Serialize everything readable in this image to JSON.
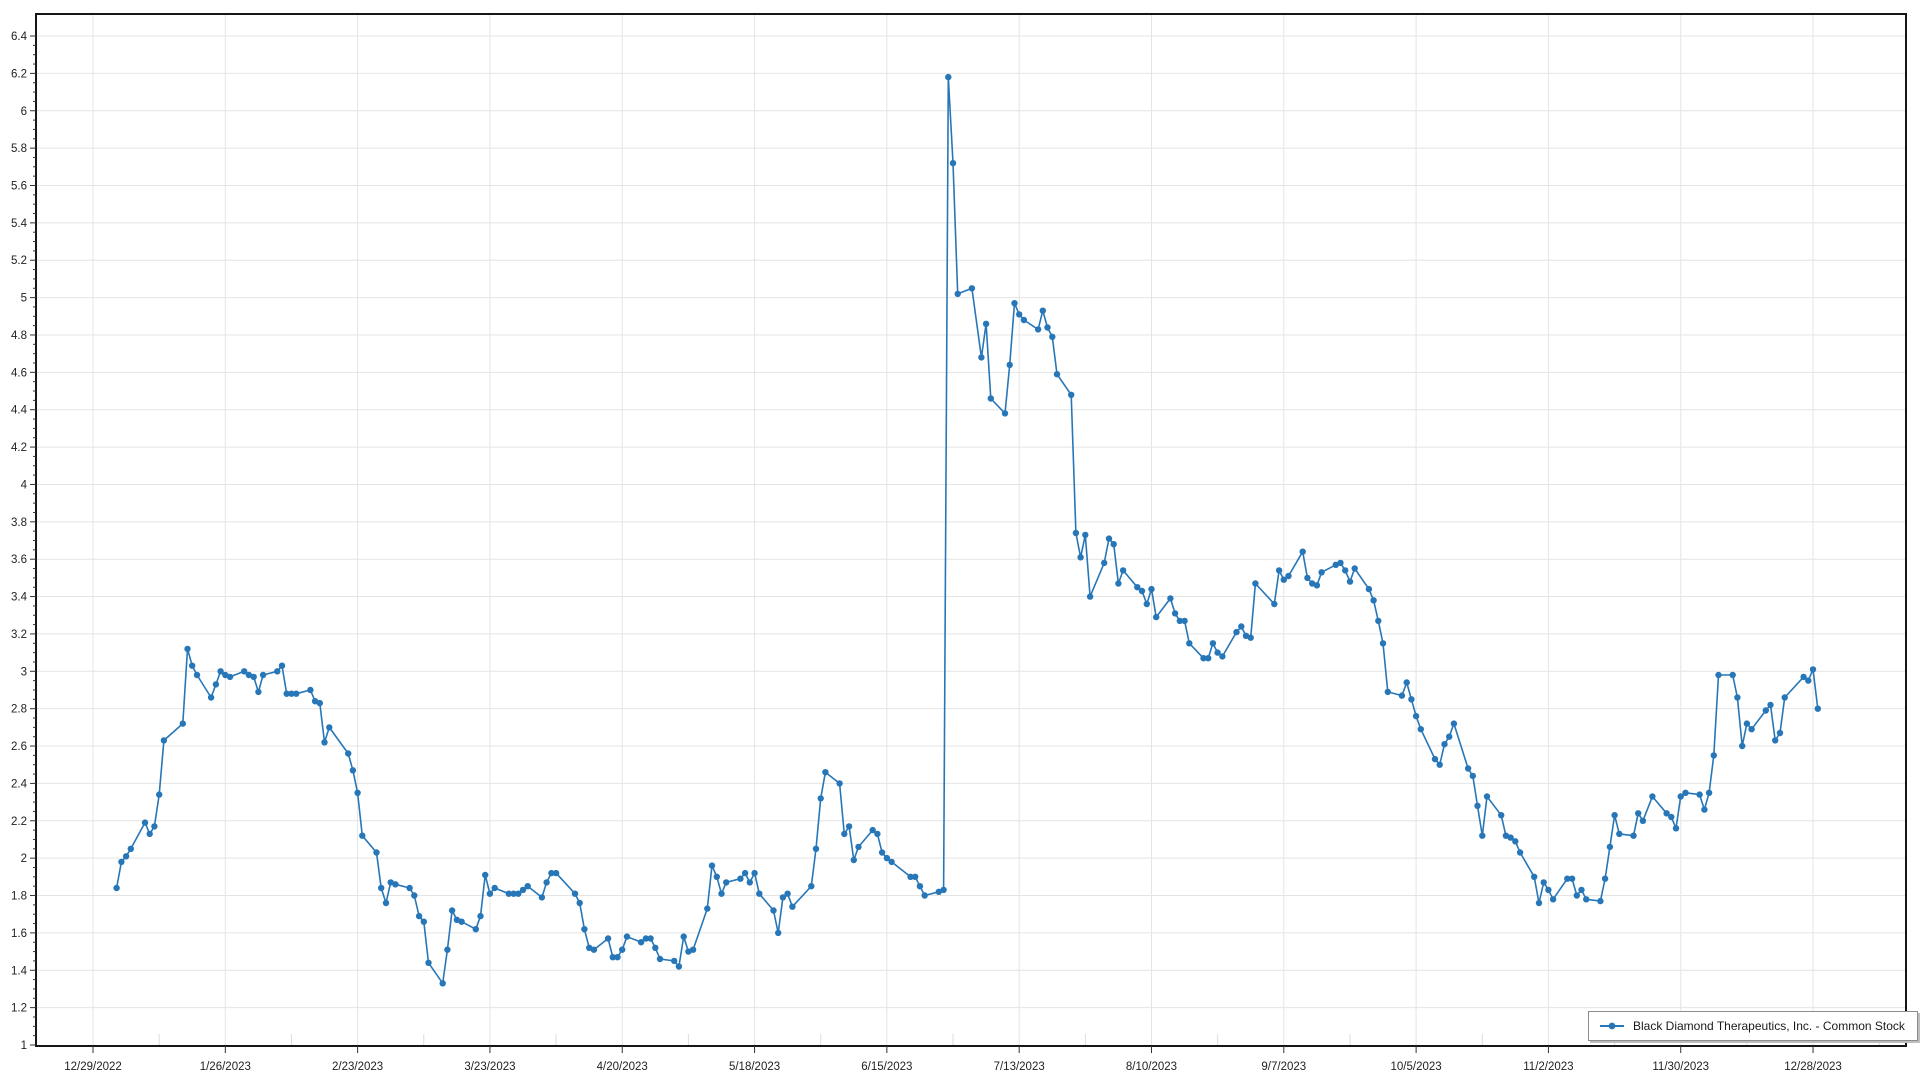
{
  "window": {
    "background": "#ffffff"
  },
  "legend": {
    "position": "bottom-right"
  },
  "chart_data": {
    "type": "line",
    "series_name": "Black Diamond Therapeutics, Inc. - Common Stock",
    "line_color": "#2777b8",
    "marker": "circle",
    "grid": true,
    "legend_position": "bottom-right",
    "x_axis": {
      "type": "date",
      "start": "12/29/2022",
      "tick_interval_days": 28,
      "tick_labels": [
        "12/29/2022",
        "1/26/2023",
        "2/23/2023",
        "3/23/2023",
        "4/20/2023",
        "5/18/2023",
        "6/15/2023",
        "7/13/2023",
        "8/10/2023",
        "9/7/2023",
        "10/5/2023",
        "11/2/2023",
        "11/30/2023",
        "12/28/2023"
      ]
    },
    "y_axis": {
      "min": 1,
      "max": 6.4,
      "tick_step": 0.2,
      "tick_labels": [
        "6.4",
        "6.2",
        "6",
        "5.8",
        "5.6",
        "5.4",
        "5.2",
        "5",
        "4.8",
        "4.6",
        "4.4",
        "4.2",
        "4",
        "3.8",
        "3.6",
        "3.4",
        "3.2",
        "3",
        "2.8",
        "2.6",
        "2.4",
        "2.2",
        "2",
        "1.8",
        "1.6",
        "1.4",
        "1.2",
        "1"
      ]
    },
    "points": [
      [
        "1/3/2023",
        1.84
      ],
      [
        "1/4/2023",
        1.98
      ],
      [
        "1/5/2023",
        2.01
      ],
      [
        "1/6/2023",
        2.05
      ],
      [
        "1/9/2023",
        2.19
      ],
      [
        "1/10/2023",
        2.13
      ],
      [
        "1/11/2023",
        2.17
      ],
      [
        "1/12/2023",
        2.34
      ],
      [
        "1/13/2023",
        2.63
      ],
      [
        "1/17/2023",
        2.72
      ],
      [
        "1/18/2023",
        3.12
      ],
      [
        "1/19/2023",
        3.03
      ],
      [
        "1/20/2023",
        2.98
      ],
      [
        "1/23/2023",
        2.86
      ],
      [
        "1/24/2023",
        2.93
      ],
      [
        "1/25/2023",
        3.0
      ],
      [
        "1/26/2023",
        2.98
      ],
      [
        "1/27/2023",
        2.97
      ],
      [
        "1/30/2023",
        3.0
      ],
      [
        "1/31/2023",
        2.98
      ],
      [
        "2/1/2023",
        2.97
      ],
      [
        "2/2/2023",
        2.89
      ],
      [
        "2/3/2023",
        2.98
      ],
      [
        "2/6/2023",
        3.0
      ],
      [
        "2/7/2023",
        3.03
      ],
      [
        "2/8/2023",
        2.88
      ],
      [
        "2/9/2023",
        2.88
      ],
      [
        "2/10/2023",
        2.88
      ],
      [
        "2/13/2023",
        2.9
      ],
      [
        "2/14/2023",
        2.84
      ],
      [
        "2/15/2023",
        2.83
      ],
      [
        "2/16/2023",
        2.62
      ],
      [
        "2/17/2023",
        2.7
      ],
      [
        "2/21/2023",
        2.56
      ],
      [
        "2/22/2023",
        2.47
      ],
      [
        "2/23/2023",
        2.35
      ],
      [
        "2/24/2023",
        2.12
      ],
      [
        "2/27/2023",
        2.03
      ],
      [
        "2/28/2023",
        1.84
      ],
      [
        "3/1/2023",
        1.76
      ],
      [
        "3/2/2023",
        1.87
      ],
      [
        "3/3/2023",
        1.86
      ],
      [
        "3/6/2023",
        1.84
      ],
      [
        "3/7/2023",
        1.8
      ],
      [
        "3/8/2023",
        1.69
      ],
      [
        "3/9/2023",
        1.66
      ],
      [
        "3/10/2023",
        1.44
      ],
      [
        "3/13/2023",
        1.33
      ],
      [
        "3/14/2023",
        1.51
      ],
      [
        "3/15/2023",
        1.72
      ],
      [
        "3/16/2023",
        1.67
      ],
      [
        "3/17/2023",
        1.66
      ],
      [
        "3/20/2023",
        1.62
      ],
      [
        "3/21/2023",
        1.69
      ],
      [
        "3/22/2023",
        1.91
      ],
      [
        "3/23/2023",
        1.81
      ],
      [
        "3/24/2023",
        1.84
      ],
      [
        "3/27/2023",
        1.81
      ],
      [
        "3/28/2023",
        1.81
      ],
      [
        "3/29/2023",
        1.81
      ],
      [
        "3/30/2023",
        1.83
      ],
      [
        "3/31/2023",
        1.85
      ],
      [
        "4/3/2023",
        1.79
      ],
      [
        "4/4/2023",
        1.87
      ],
      [
        "4/5/2023",
        1.92
      ],
      [
        "4/6/2023",
        1.92
      ],
      [
        "4/10/2023",
        1.81
      ],
      [
        "4/11/2023",
        1.76
      ],
      [
        "4/12/2023",
        1.62
      ],
      [
        "4/13/2023",
        1.52
      ],
      [
        "4/14/2023",
        1.51
      ],
      [
        "4/17/2023",
        1.57
      ],
      [
        "4/18/2023",
        1.47
      ],
      [
        "4/19/2023",
        1.47
      ],
      [
        "4/20/2023",
        1.51
      ],
      [
        "4/21/2023",
        1.58
      ],
      [
        "4/24/2023",
        1.55
      ],
      [
        "4/25/2023",
        1.57
      ],
      [
        "4/26/2023",
        1.57
      ],
      [
        "4/27/2023",
        1.52
      ],
      [
        "4/28/2023",
        1.46
      ],
      [
        "5/1/2023",
        1.45
      ],
      [
        "5/2/2023",
        1.42
      ],
      [
        "5/3/2023",
        1.58
      ],
      [
        "5/4/2023",
        1.5
      ],
      [
        "5/5/2023",
        1.51
      ],
      [
        "5/8/2023",
        1.73
      ],
      [
        "5/9/2023",
        1.96
      ],
      [
        "5/10/2023",
        1.9
      ],
      [
        "5/11/2023",
        1.81
      ],
      [
        "5/12/2023",
        1.87
      ],
      [
        "5/15/2023",
        1.89
      ],
      [
        "5/16/2023",
        1.92
      ],
      [
        "5/17/2023",
        1.87
      ],
      [
        "5/18/2023",
        1.92
      ],
      [
        "5/19/2023",
        1.81
      ],
      [
        "5/22/2023",
        1.72
      ],
      [
        "5/23/2023",
        1.6
      ],
      [
        "5/24/2023",
        1.79
      ],
      [
        "5/25/2023",
        1.81
      ],
      [
        "5/26/2023",
        1.74
      ],
      [
        "5/30/2023",
        1.85
      ],
      [
        "5/31/2023",
        2.05
      ],
      [
        "6/1/2023",
        2.32
      ],
      [
        "6/2/2023",
        2.46
      ],
      [
        "6/5/2023",
        2.4
      ],
      [
        "6/6/2023",
        2.13
      ],
      [
        "6/7/2023",
        2.17
      ],
      [
        "6/8/2023",
        1.99
      ],
      [
        "6/9/2023",
        2.06
      ],
      [
        "6/12/2023",
        2.15
      ],
      [
        "6/13/2023",
        2.13
      ],
      [
        "6/14/2023",
        2.03
      ],
      [
        "6/15/2023",
        2.0
      ],
      [
        "6/16/2023",
        1.98
      ],
      [
        "6/20/2023",
        1.9
      ],
      [
        "6/21/2023",
        1.9
      ],
      [
        "6/22/2023",
        1.85
      ],
      [
        "6/23/2023",
        1.8
      ],
      [
        "6/26/2023",
        1.82
      ],
      [
        "6/27/2023",
        1.83
      ],
      [
        "6/28/2023",
        6.18
      ],
      [
        "6/29/2023",
        5.72
      ],
      [
        "6/30/2023",
        5.02
      ],
      [
        "7/3/2023",
        5.05
      ],
      [
        "7/5/2023",
        4.68
      ],
      [
        "7/6/2023",
        4.86
      ],
      [
        "7/7/2023",
        4.46
      ],
      [
        "7/10/2023",
        4.38
      ],
      [
        "7/11/2023",
        4.64
      ],
      [
        "7/12/2023",
        4.97
      ],
      [
        "7/13/2023",
        4.91
      ],
      [
        "7/14/2023",
        4.88
      ],
      [
        "7/17/2023",
        4.83
      ],
      [
        "7/18/2023",
        4.93
      ],
      [
        "7/19/2023",
        4.84
      ],
      [
        "7/20/2023",
        4.79
      ],
      [
        "7/21/2023",
        4.59
      ],
      [
        "7/24/2023",
        4.48
      ],
      [
        "7/25/2023",
        3.74
      ],
      [
        "7/26/2023",
        3.61
      ],
      [
        "7/27/2023",
        3.73
      ],
      [
        "7/28/2023",
        3.4
      ],
      [
        "7/31/2023",
        3.58
      ],
      [
        "8/1/2023",
        3.71
      ],
      [
        "8/2/2023",
        3.68
      ],
      [
        "8/3/2023",
        3.47
      ],
      [
        "8/4/2023",
        3.54
      ],
      [
        "8/7/2023",
        3.45
      ],
      [
        "8/8/2023",
        3.43
      ],
      [
        "8/9/2023",
        3.36
      ],
      [
        "8/10/2023",
        3.44
      ],
      [
        "8/11/2023",
        3.29
      ],
      [
        "8/14/2023",
        3.39
      ],
      [
        "8/15/2023",
        3.31
      ],
      [
        "8/16/2023",
        3.27
      ],
      [
        "8/17/2023",
        3.27
      ],
      [
        "8/18/2023",
        3.15
      ],
      [
        "8/21/2023",
        3.07
      ],
      [
        "8/22/2023",
        3.07
      ],
      [
        "8/23/2023",
        3.15
      ],
      [
        "8/24/2023",
        3.1
      ],
      [
        "8/25/2023",
        3.08
      ],
      [
        "8/28/2023",
        3.21
      ],
      [
        "8/29/2023",
        3.24
      ],
      [
        "8/30/2023",
        3.19
      ],
      [
        "8/31/2023",
        3.18
      ],
      [
        "9/1/2023",
        3.47
      ],
      [
        "9/5/2023",
        3.36
      ],
      [
        "9/6/2023",
        3.54
      ],
      [
        "9/7/2023",
        3.49
      ],
      [
        "9/8/2023",
        3.51
      ],
      [
        "9/11/2023",
        3.64
      ],
      [
        "9/12/2023",
        3.5
      ],
      [
        "9/13/2023",
        3.47
      ],
      [
        "9/14/2023",
        3.46
      ],
      [
        "9/15/2023",
        3.53
      ],
      [
        "9/18/2023",
        3.57
      ],
      [
        "9/19/2023",
        3.58
      ],
      [
        "9/20/2023",
        3.54
      ],
      [
        "9/21/2023",
        3.48
      ],
      [
        "9/22/2023",
        3.55
      ],
      [
        "9/25/2023",
        3.44
      ],
      [
        "9/26/2023",
        3.38
      ],
      [
        "9/27/2023",
        3.27
      ],
      [
        "9/28/2023",
        3.15
      ],
      [
        "9/29/2023",
        2.89
      ],
      [
        "10/2/2023",
        2.87
      ],
      [
        "10/3/2023",
        2.94
      ],
      [
        "10/4/2023",
        2.85
      ],
      [
        "10/5/2023",
        2.76
      ],
      [
        "10/6/2023",
        2.69
      ],
      [
        "10/9/2023",
        2.53
      ],
      [
        "10/10/2023",
        2.5
      ],
      [
        "10/11/2023",
        2.61
      ],
      [
        "10/12/2023",
        2.65
      ],
      [
        "10/13/2023",
        2.72
      ],
      [
        "10/16/2023",
        2.48
      ],
      [
        "10/17/2023",
        2.44
      ],
      [
        "10/18/2023",
        2.28
      ],
      [
        "10/19/2023",
        2.12
      ],
      [
        "10/20/2023",
        2.33
      ],
      [
        "10/23/2023",
        2.23
      ],
      [
        "10/24/2023",
        2.12
      ],
      [
        "10/25/2023",
        2.11
      ],
      [
        "10/26/2023",
        2.09
      ],
      [
        "10/27/2023",
        2.03
      ],
      [
        "10/30/2023",
        1.9
      ],
      [
        "10/31/2023",
        1.76
      ],
      [
        "11/1/2023",
        1.87
      ],
      [
        "11/2/2023",
        1.83
      ],
      [
        "11/3/2023",
        1.78
      ],
      [
        "11/6/2023",
        1.89
      ],
      [
        "11/7/2023",
        1.89
      ],
      [
        "11/8/2023",
        1.8
      ],
      [
        "11/9/2023",
        1.83
      ],
      [
        "11/10/2023",
        1.78
      ],
      [
        "11/13/2023",
        1.77
      ],
      [
        "11/14/2023",
        1.89
      ],
      [
        "11/15/2023",
        2.06
      ],
      [
        "11/16/2023",
        2.23
      ],
      [
        "11/17/2023",
        2.13
      ],
      [
        "11/20/2023",
        2.12
      ],
      [
        "11/21/2023",
        2.24
      ],
      [
        "11/22/2023",
        2.2
      ],
      [
        "11/24/2023",
        2.33
      ],
      [
        "11/27/2023",
        2.24
      ],
      [
        "11/28/2023",
        2.22
      ],
      [
        "11/29/2023",
        2.16
      ],
      [
        "11/30/2023",
        2.33
      ],
      [
        "12/1/2023",
        2.35
      ],
      [
        "12/4/2023",
        2.34
      ],
      [
        "12/5/2023",
        2.26
      ],
      [
        "12/6/2023",
        2.35
      ],
      [
        "12/7/2023",
        2.55
      ],
      [
        "12/8/2023",
        2.98
      ],
      [
        "12/11/2023",
        2.98
      ],
      [
        "12/12/2023",
        2.86
      ],
      [
        "12/13/2023",
        2.6
      ],
      [
        "12/14/2023",
        2.72
      ],
      [
        "12/15/2023",
        2.69
      ],
      [
        "12/18/2023",
        2.79
      ],
      [
        "12/19/2023",
        2.82
      ],
      [
        "12/20/2023",
        2.63
      ],
      [
        "12/21/2023",
        2.67
      ],
      [
        "12/22/2023",
        2.86
      ],
      [
        "12/26/2023",
        2.97
      ],
      [
        "12/27/2023",
        2.95
      ],
      [
        "12/28/2023",
        3.01
      ],
      [
        "12/29/2023",
        2.8
      ]
    ]
  }
}
